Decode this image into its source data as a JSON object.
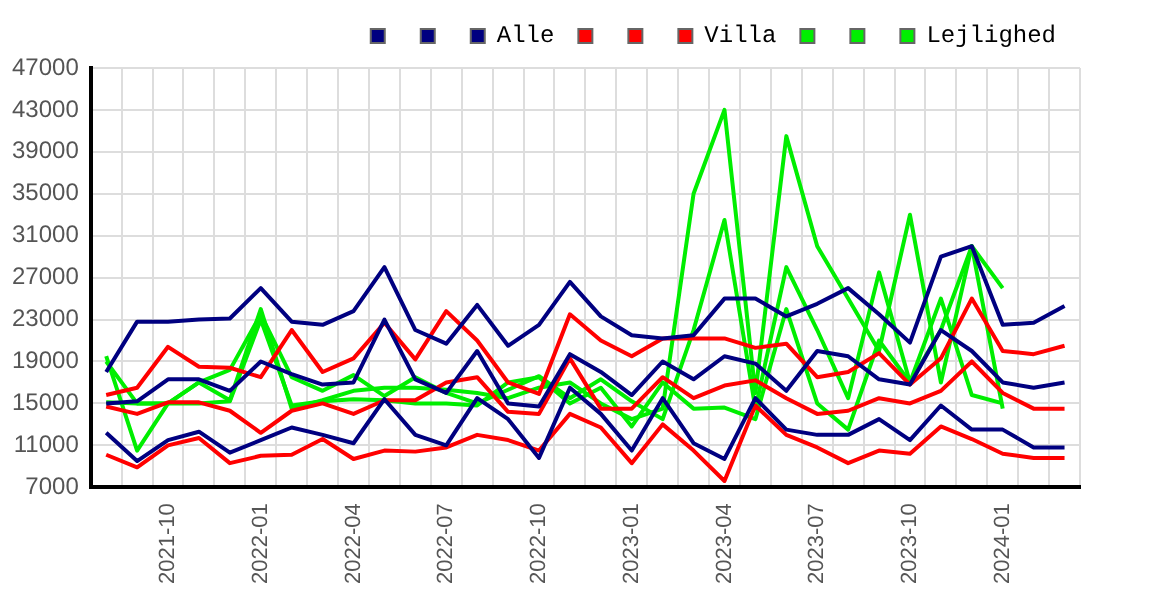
{
  "chart_data": {
    "type": "line",
    "categories": [
      null,
      null,
      "2021-10",
      null,
      null,
      "2022-01",
      null,
      null,
      "2022-04",
      null,
      null,
      "2022-07",
      null,
      null,
      "2022-10",
      null,
      null,
      "2023-01",
      null,
      null,
      "2023-04",
      null,
      null,
      "2023-07",
      null,
      null,
      "2023-10",
      null,
      null,
      "2024-01",
      null,
      null
    ],
    "series": [
      {
        "color": "#000080",
        "values": [
          18000,
          22800,
          22800,
          23000,
          23100,
          26000,
          22800,
          22500,
          23800,
          28000,
          22000,
          20700,
          24400,
          20500,
          22500,
          26600,
          23300,
          21500,
          21200,
          21500,
          25000,
          25000,
          23300,
          24500,
          26000,
          23500,
          20800,
          29000,
          30000,
          22500,
          22700,
          24300
        ]
      },
      {
        "color": "#000080",
        "values": [
          15000,
          15200,
          17300,
          17300,
          16200,
          19000,
          17800,
          16800,
          17000,
          23000,
          17300,
          16000,
          20000,
          15000,
          14700,
          19700,
          18000,
          15800,
          19000,
          17300,
          19500,
          18800,
          16200,
          20000,
          19500,
          17300,
          16800,
          22000,
          20000,
          17000,
          16500,
          17000
        ]
      },
      {
        "name": "Alle",
        "color": "#000080",
        "values": [
          12200,
          9500,
          11500,
          12300,
          10300,
          11500,
          12700,
          12000,
          11200,
          15400,
          12000,
          11000,
          15500,
          13500,
          9800,
          16500,
          14000,
          10500,
          15500,
          11200,
          9700,
          15500,
          12500,
          12000,
          12000,
          13500,
          11500,
          14800,
          12500,
          12500,
          10800,
          10800
        ]
      },
      {
        "color": "#ff0000",
        "values": [
          15800,
          16500,
          20400,
          18500,
          18400,
          17500,
          22000,
          18000,
          19300,
          22700,
          19200,
          23800,
          21000,
          17000,
          15900,
          23500,
          21000,
          19500,
          21200,
          21200,
          21200,
          20300,
          20700,
          17500,
          18000,
          19800,
          16800,
          19300,
          25000,
          20000,
          19700,
          20500
        ]
      },
      {
        "color": "#ff0000",
        "values": [
          14700,
          14000,
          15100,
          15100,
          14300,
          12200,
          14300,
          15000,
          14000,
          15300,
          15300,
          17000,
          17500,
          14200,
          14000,
          19300,
          14500,
          14500,
          17500,
          15500,
          16700,
          17200,
          15500,
          14000,
          14300,
          15500,
          15000,
          16200,
          19000,
          16000,
          14500,
          14500
        ]
      },
      {
        "name": "Villa",
        "color": "#ff0000",
        "values": [
          10100,
          8900,
          11000,
          11700,
          9300,
          10000,
          10100,
          11600,
          9700,
          10500,
          10400,
          10800,
          12000,
          11500,
          10500,
          14000,
          12700,
          9300,
          13000,
          10500,
          7600,
          14800,
          12000,
          10800,
          9300,
          10500,
          10200,
          12800,
          11600,
          10200,
          9800,
          9800
        ]
      },
      {
        "color": "#00ee00",
        "values": [
          19500,
          10500,
          15000,
          17000,
          15300,
          24000,
          14500,
          15300,
          16200,
          16500,
          16500,
          16300,
          16000,
          15500,
          16500,
          17000,
          15000,
          13500,
          14500,
          35000,
          43000,
          16000,
          40500,
          30000,
          25000,
          20000,
          33000,
          17000,
          30000,
          26000,
          null,
          null
        ]
      },
      {
        "color": "#00ee00",
        "values": [
          15100,
          15000,
          15000,
          17000,
          18200,
          23500,
          17500,
          16200,
          17700,
          15700,
          17500,
          16000,
          15000,
          16300,
          17600,
          15500,
          17300,
          15200,
          13500,
          22000,
          32500,
          14500,
          28000,
          22000,
          15500,
          27500,
          17000,
          22000,
          30000,
          14500,
          null,
          null
        ]
      },
      {
        "name": "Lejlighed",
        "color": "#00ee00",
        "values": [
          19000,
          15000,
          15000,
          15000,
          15200,
          23000,
          14800,
          15200,
          15400,
          15300,
          15000,
          15000,
          14800,
          17000,
          17500,
          15000,
          16500,
          12800,
          17000,
          14500,
          14600,
          13500,
          24000,
          15000,
          12500,
          21000,
          17000,
          25000,
          15800,
          15000,
          null,
          null
        ]
      }
    ],
    "ylim": [
      7000,
      47000
    ],
    "yticks": [
      7000,
      11000,
      15000,
      19000,
      23000,
      27000,
      31000,
      35000,
      39000,
      43000,
      47000
    ],
    "grid": true,
    "legend": "top right",
    "marker": "none",
    "line_style": "solid"
  }
}
